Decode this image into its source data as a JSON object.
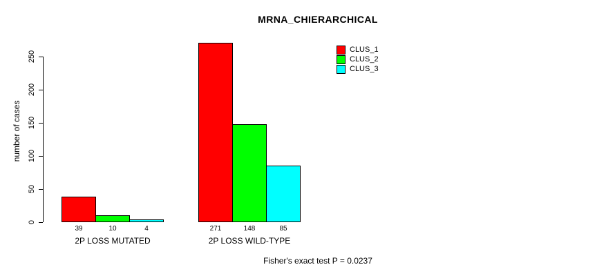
{
  "chart_data": {
    "type": "bar",
    "title": "MRNA_CHIERARCHICAL",
    "ylabel": "number of cases",
    "xlabel": "",
    "categories": [
      "2P LOSS MUTATED",
      "2P LOSS WILD-TYPE"
    ],
    "series": [
      {
        "name": "CLUS_1",
        "color": "#FF0000",
        "values": [
          39,
          271
        ]
      },
      {
        "name": "CLUS_2",
        "color": "#00FF00",
        "values": [
          10,
          148
        ]
      },
      {
        "name": "CLUS_3",
        "color": "#00FFFF",
        "values": [
          4,
          85
        ]
      }
    ],
    "yticks": [
      0,
      50,
      100,
      150,
      200,
      250
    ],
    "ylim": [
      0,
      250
    ],
    "bar_labels": true,
    "grid": false,
    "legend_position": "top-right",
    "annotation": "Fisher's exact test P = 0.0237",
    "bar_border_color": "#000000",
    "text_color": "#000000",
    "background_color": "#FFFFFF"
  }
}
